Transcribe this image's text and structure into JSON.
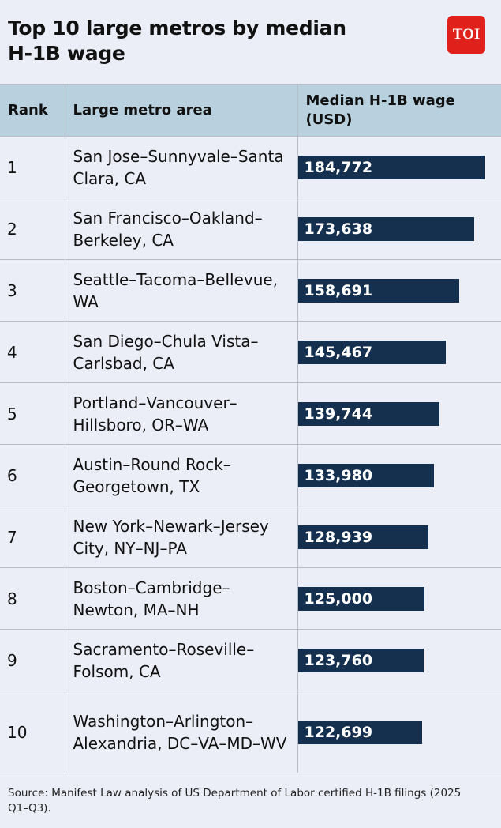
{
  "title": "Top 10 large metros by median H-1B wage",
  "logo": "TOI",
  "table": {
    "headers": [
      "Rank",
      "Large metro area",
      "Median H-1B wage (USD)"
    ],
    "rows": [
      {
        "rank": "1",
        "metro": "San Jose–Sunnyvale–Santa Clara, CA",
        "wage": "184,772"
      },
      {
        "rank": "2",
        "metro": "San Francisco–Oakland–Berkeley, CA",
        "wage": "173,638"
      },
      {
        "rank": "3",
        "metro": "Seattle–Tacoma–Bellevue, WA",
        "wage": "158,691"
      },
      {
        "rank": "4",
        "metro": "San Diego–Chula Vista–Carlsbad, CA",
        "wage": "145,467"
      },
      {
        "rank": "5",
        "metro": "Portland–Vancouver–Hillsboro, OR–WA",
        "wage": "139,744"
      },
      {
        "rank": "6",
        "metro": "Austin–Round Rock–Georgetown, TX",
        "wage": "133,980"
      },
      {
        "rank": "7",
        "metro": "New York–Newark–Jersey City, NY–NJ–PA",
        "wage": "128,939"
      },
      {
        "rank": "8",
        "metro": "Boston–Cambridge–Newton, MA–NH",
        "wage": "125,000"
      },
      {
        "rank": "9",
        "metro": "Sacramento–Roseville–Folsom, CA",
        "wage": "123,760"
      },
      {
        "rank": "10",
        "metro": "Washington–Arlington–Alexandria, DC–VA–MD–WV",
        "wage": "122,699"
      }
    ]
  },
  "source": "Source: Manifest Law analysis of US Department of Labor certified H-1B filings (2025 Q1–Q3).",
  "colors": {
    "bar": "#15304f",
    "header_bg": "#b9d1de",
    "background": "#ebeef7",
    "logo": "#e0211b"
  },
  "chart_data": {
    "type": "bar",
    "orientation": "horizontal",
    "title": "Top 10 large metros by median H-1B wage",
    "xlabel": "Median H-1B wage (USD)",
    "ylabel": "Large metro area",
    "categories": [
      "San Jose–Sunnyvale–Santa Clara, CA",
      "San Francisco–Oakland–Berkeley, CA",
      "Seattle–Tacoma–Bellevue, WA",
      "San Diego–Chula Vista–Carlsbad, CA",
      "Portland–Vancouver–Hillsboro, OR–WA",
      "Austin–Round Rock–Georgetown, TX",
      "New York–Newark–Jersey City, NY–NJ–PA",
      "Boston–Cambridge–Newton, MA–NH",
      "Sacramento–Roseville–Folsom, CA",
      "Washington–Arlington–Alexandria, DC–VA–MD–WV"
    ],
    "values": [
      184772,
      173638,
      158691,
      145467,
      139744,
      133980,
      128939,
      125000,
      123760,
      122699
    ],
    "data_labels": true,
    "grid": false,
    "legend": null
  }
}
